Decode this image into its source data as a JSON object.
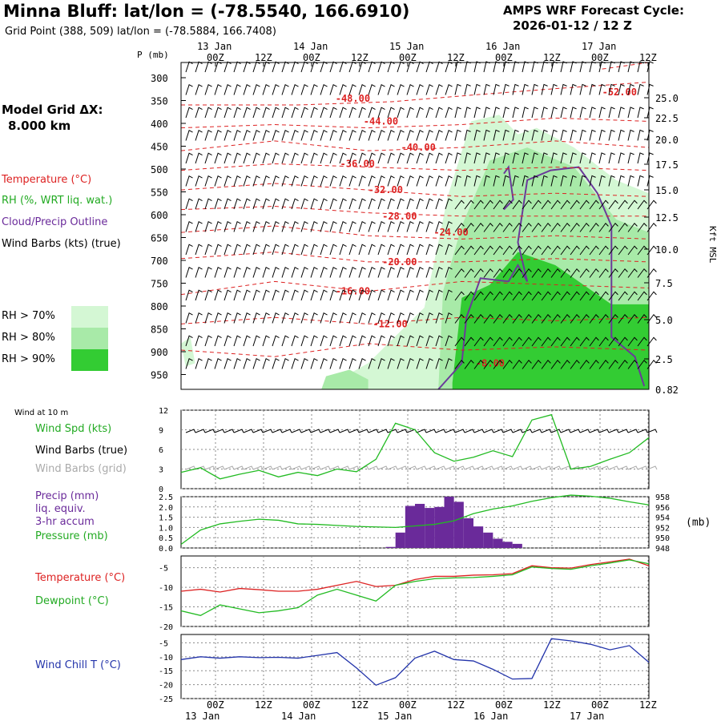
{
  "header": {
    "title": "Minna Bluff:  lat/lon = (-78.5540, 166.6910)",
    "grid_point": "Grid Point (388, 509) lat/lon = (-78.5884, 166.7408)",
    "cycle_line1": "AMPS WRF Forecast Cycle:",
    "cycle_line2": "2026-01-12 / 12  Z"
  },
  "sidebar": {
    "model_grid_label": "Model Grid ΔX:",
    "model_grid_value": "8.000 km",
    "legend_temperature": "Temperature (°C)",
    "legend_rh": "RH (%, WRT liq. wat.)",
    "legend_cloud": "Cloud/Precip Outline",
    "legend_barbs": "Wind Barbs (kts) (true)",
    "rh_70": "RH > 70%",
    "rh_80": "RH > 80%",
    "rh_90": "RH > 90%",
    "wind10_title": "Wind at 10 m",
    "wind_spd": "Wind Spd (kts)",
    "wind_barbs_true": "Wind Barbs (true)",
    "wind_barbs_grid": "Wind Barbs (grid)",
    "precip_1": "Precip (mm)",
    "precip_2": "liq. equiv.",
    "precip_3": "3-hr accum",
    "pressure": "Pressure (mb)",
    "temperature": "Temperature (°C)",
    "dewpoint": "Dewpoint (°C)",
    "windchill": "Wind Chill T (°C)"
  },
  "colors": {
    "temperature": "#dd2222",
    "dewpoint": "#22bb22",
    "green_line": "#22bb22",
    "precip": "#6a2a9a",
    "cloud_outline": "#6a3a9a",
    "windchill": "#2233aa",
    "rh70": "#d4f7d4",
    "rh80": "#a8eaa8",
    "rh90": "#33cc33",
    "grid_barbs": "#aaaaaa"
  },
  "chart_data": [
    {
      "type": "heatmap",
      "name": "time-height cross section",
      "ylabel_left": "P (mb)",
      "ylabel_right": "Kft MSL",
      "pressure_ticks": [
        "300",
        "350",
        "400",
        "450",
        "500",
        "550",
        "600",
        "650",
        "700",
        "750",
        "800",
        "850",
        "900",
        "950"
      ],
      "height_ticks": [
        "25.0",
        "22.5",
        "20.0",
        "17.5",
        "15.0",
        "12.5",
        "10.0",
        "7.5",
        "5.0",
        "2.5",
        "0.82"
      ],
      "time_top_hours": [
        "00Z",
        "12Z",
        "00Z",
        "12Z",
        "00Z",
        "12Z",
        "00Z",
        "12Z",
        "00Z",
        "12Z"
      ],
      "time_top_dates": [
        "13 Jan",
        "14 Jan",
        "15 Jan",
        "16 Jan",
        "17 Jan"
      ],
      "temperature_contours": [
        {
          "value": -52,
          "label": "-52.00"
        },
        {
          "value": -48,
          "label": "-48.00"
        },
        {
          "value": -44,
          "label": "-44.00"
        },
        {
          "value": -40,
          "label": "-40.00"
        },
        {
          "value": -36,
          "label": "-36.00"
        },
        {
          "value": -32,
          "label": "-32.00"
        },
        {
          "value": -28,
          "label": "-28.00"
        },
        {
          "value": -24,
          "label": "-24.00"
        },
        {
          "value": -20,
          "label": "-20.00"
        },
        {
          "value": -16,
          "label": "-16.00"
        },
        {
          "value": -12,
          "label": "-12.00"
        },
        {
          "value": -8,
          "label": "-8.00"
        }
      ]
    },
    {
      "type": "line",
      "name": "wind at 10 m",
      "y_ticks": [
        "12",
        "9",
        "6",
        "3",
        "0"
      ],
      "ylim": [
        0,
        12
      ],
      "x_hours": [
        0,
        6,
        12,
        18,
        24,
        30,
        36,
        42,
        48,
        54,
        60,
        66,
        72,
        78,
        84,
        90,
        96,
        102,
        108,
        114,
        120,
        126,
        132,
        138,
        144
      ],
      "series": [
        {
          "name": "Wind Spd (kts)",
          "values": [
            2.5,
            3.2,
            1.5,
            2.2,
            2.8,
            1.8,
            2.5,
            2.0,
            3.0,
            2.6,
            4.5,
            10.0,
            9.0,
            5.5,
            4.2,
            4.8,
            5.8,
            4.9,
            10.5,
            11.3,
            3.0,
            3.4,
            4.5,
            5.5,
            7.8
          ]
        }
      ]
    },
    {
      "type": "bar",
      "name": "precip and pressure",
      "y_ticks_left": [
        "2.5",
        "2.0",
        "1.5",
        "1.0",
        "0.5",
        "0.0"
      ],
      "y_ticks_right": [
        "958",
        "956",
        "954",
        "952",
        "950",
        "948"
      ],
      "ylabel_right": "(mb)",
      "ylim": [
        0,
        2.5
      ],
      "precip_hours": [
        63,
        66,
        69,
        72,
        75,
        78,
        81,
        84,
        87,
        90,
        93,
        96,
        99,
        102
      ],
      "precip_values": [
        0.05,
        0.75,
        2.05,
        2.15,
        1.95,
        2.0,
        2.5,
        2.25,
        1.45,
        1.05,
        0.75,
        0.45,
        0.3,
        0.2
      ],
      "pressure_x_hours": [
        0,
        6,
        12,
        18,
        24,
        30,
        36,
        42,
        48,
        54,
        60,
        66,
        72,
        78,
        84,
        90,
        96,
        102,
        108,
        114,
        120,
        126,
        132,
        138,
        144
      ],
      "pressure_values": [
        948.7,
        951.5,
        952.7,
        953.2,
        953.6,
        953.4,
        952.7,
        952.6,
        952.4,
        952.2,
        952.1,
        952.0,
        952.3,
        952.6,
        953.3,
        954.7,
        955.6,
        956.2,
        957.1,
        957.8,
        958.3,
        958.1,
        957.7,
        957.0,
        956.4
      ],
      "pressure_ylim": [
        948,
        958
      ]
    },
    {
      "type": "line",
      "name": "temperature and dewpoint",
      "y_ticks": [
        "-5",
        "-10",
        "-15",
        "-20"
      ],
      "ylim": [
        -20,
        -2
      ],
      "x_hours": [
        0,
        6,
        12,
        18,
        24,
        30,
        36,
        42,
        48,
        54,
        60,
        66,
        72,
        78,
        84,
        90,
        96,
        102,
        108,
        114,
        120,
        126,
        132,
        138,
        144
      ],
      "series": [
        {
          "name": "Temperature (°C)",
          "values": [
            -11.0,
            -10.5,
            -11.2,
            -10.3,
            -10.6,
            -11.0,
            -11.0,
            -10.5,
            -9.5,
            -8.5,
            -9.8,
            -9.5,
            -8.0,
            -7.2,
            -7.2,
            -6.9,
            -6.8,
            -6.5,
            -4.5,
            -5.0,
            -5.1,
            -4.2,
            -3.5,
            -2.8,
            -4.5
          ]
        },
        {
          "name": "Dewpoint (°C)",
          "values": [
            -16.0,
            -17.2,
            -14.5,
            -15.5,
            -16.5,
            -16.0,
            -15.2,
            -12.0,
            -10.5,
            -12.0,
            -13.5,
            -9.5,
            -8.5,
            -7.8,
            -7.6,
            -7.5,
            -7.2,
            -6.8,
            -4.8,
            -5.2,
            -5.4,
            -4.5,
            -3.8,
            -3.0,
            -4.0
          ]
        }
      ]
    },
    {
      "type": "line",
      "name": "wind chill",
      "y_ticks": [
        "-5",
        "-10",
        "-15",
        "-20",
        "-25"
      ],
      "ylim": [
        -25,
        -2
      ],
      "x_hours": [
        0,
        6,
        12,
        18,
        24,
        30,
        36,
        42,
        48,
        54,
        60,
        66,
        72,
        78,
        84,
        90,
        96,
        102,
        108,
        114,
        120,
        126,
        132,
        138,
        144
      ],
      "series": [
        {
          "name": "Wind Chill T (°C)",
          "values": [
            -11.0,
            -10.0,
            -10.5,
            -10.0,
            -10.3,
            -10.2,
            -10.5,
            -9.5,
            -8.5,
            -14.0,
            -20.2,
            -17.5,
            -10.5,
            -8.0,
            -11.0,
            -11.5,
            -14.5,
            -18.0,
            -17.8,
            -3.5,
            -4.3,
            -5.5,
            -7.5,
            -6.0,
            -12.0
          ]
        }
      ]
    }
  ],
  "bottom_axis": {
    "hours": [
      "00Z",
      "12Z",
      "00Z",
      "12Z",
      "00Z",
      "12Z",
      "00Z",
      "12Z",
      "00Z",
      "12Z"
    ],
    "dates": [
      "13 Jan",
      "14 Jan",
      "15 Jan",
      "16 Jan",
      "17 Jan"
    ]
  }
}
